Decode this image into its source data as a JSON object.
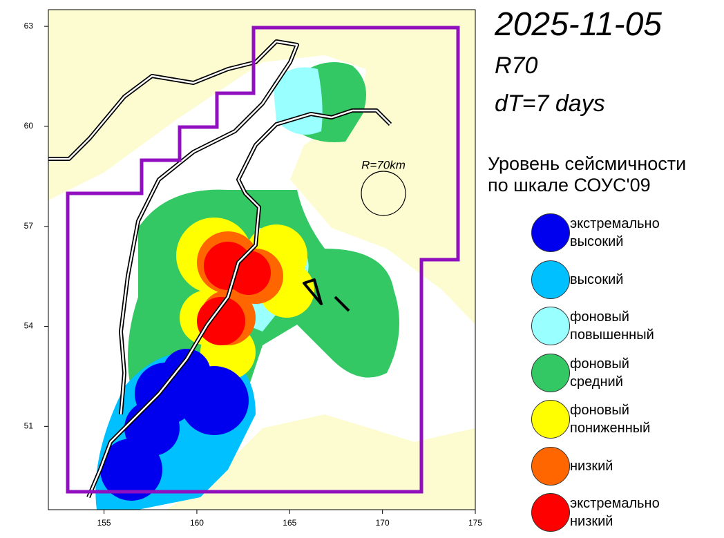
{
  "header": {
    "date": "2025-11-05",
    "radius_code": "R70",
    "interval": "dT=7 days"
  },
  "map": {
    "xlim": [
      152,
      175
    ],
    "ylim": [
      48.5,
      63.5
    ],
    "xticks": [
      155,
      160,
      165,
      170,
      175
    ],
    "yticks": [
      51,
      54,
      57,
      60,
      63
    ],
    "radius_label": "R=70km"
  },
  "legend": {
    "title": "Уровень сейсмичности\nпо шкале СОУС'09",
    "items": [
      {
        "label": "экстремально\nвысокий",
        "color": "#0000ee"
      },
      {
        "label": "высокий",
        "color": "#00c0ff"
      },
      {
        "label": "фоновый\nповышенный",
        "color": "#99ffff"
      },
      {
        "label": "фоновый\nсредний",
        "color": "#33c864"
      },
      {
        "label": "фоновый\nпониженный",
        "color": "#ffff00"
      },
      {
        "label": "низкий",
        "color": "#ff6600"
      },
      {
        "label": "экстремально\nнизкий",
        "color": "#ff0000"
      }
    ]
  }
}
